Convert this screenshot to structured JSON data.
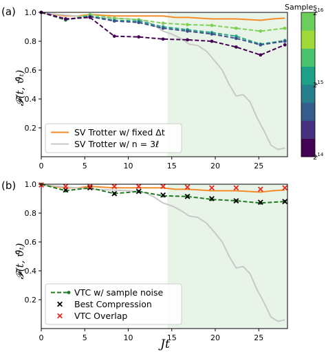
{
  "chart_data": [
    {
      "type": "line",
      "panel_label": "(a)",
      "ylabel": "𝓕(t, ϑ̂ₜ)",
      "xlabel": "",
      "xlim": [
        0,
        28.3
      ],
      "ylim": [
        0.0,
        1.0
      ],
      "xticks": [
        "0",
        "5",
        "10",
        "15",
        "20",
        "25"
      ],
      "xtick_values": [
        0,
        5,
        10,
        15,
        20,
        25
      ],
      "yticks": [
        "0.2",
        "0.4",
        "0.6",
        "0.8",
        "1.0"
      ],
      "ytick_values": [
        0.2,
        0.4,
        0.6,
        0.8,
        1.0
      ],
      "shaded_region": {
        "x": [
          14.5,
          28.3
        ],
        "color": "#e9f4e9"
      },
      "colorbar": {
        "title": "Samples",
        "tick_base": "2",
        "tick_exponents": [
          "16",
          "15",
          "14"
        ],
        "colors": [
          "#440154",
          "#46327e",
          "#365c8d",
          "#277f8e",
          "#1fa187",
          "#4ac16d",
          "#a0da39",
          "#6ccd5a"
        ]
      },
      "series": [
        {
          "name": "SV Trotter w/ fixed Δt",
          "style": "solid",
          "color": "#f28c28",
          "x": [
            0,
            1.4,
            2.8,
            4.2,
            5.6,
            7,
            8.4,
            9.8,
            11.2,
            12.6,
            14,
            15.4,
            16.8,
            18.2,
            19.6,
            21,
            22.4,
            23.8,
            25.2,
            26.6,
            28
          ],
          "y": [
            0.995,
            0.985,
            0.975,
            0.975,
            0.985,
            0.98,
            0.975,
            0.975,
            0.975,
            0.975,
            0.975,
            0.965,
            0.965,
            0.96,
            0.955,
            0.955,
            0.955,
            0.95,
            0.945,
            0.955,
            0.96
          ]
        },
        {
          "name": "SV Trotter w/ n = 3ℓ",
          "style": "solid",
          "color": "#c8c8c8",
          "x": [
            0,
            2,
            4,
            6,
            8,
            10,
            11.2,
            12,
            13,
            14,
            15,
            16,
            17,
            18,
            19,
            20,
            20.8,
            21.6,
            22.4,
            23.2,
            24,
            24.8,
            25.6,
            26.4,
            27.2,
            28
          ],
          "y": [
            0.995,
            0.985,
            0.975,
            0.965,
            0.96,
            0.955,
            0.95,
            0.94,
            0.91,
            0.87,
            0.85,
            0.82,
            0.78,
            0.77,
            0.73,
            0.66,
            0.6,
            0.5,
            0.42,
            0.43,
            0.38,
            0.27,
            0.18,
            0.08,
            0.05,
            0.06
          ]
        },
        {
          "name": "",
          "style": "dashed-markers",
          "color": "#7cd250",
          "x": [
            0,
            2.8,
            5.6,
            8.4,
            11.2,
            14,
            16.8,
            19.6,
            22.4,
            25.2,
            28
          ],
          "y": [
            1.0,
            0.945,
            0.985,
            0.96,
            0.95,
            0.925,
            0.915,
            0.91,
            0.89,
            0.87,
            0.89
          ]
        },
        {
          "name": "",
          "style": "dashed-markers",
          "color": "#26a586",
          "x": [
            0,
            2.8,
            5.6,
            8.4,
            11.2,
            14,
            16.8,
            19.6,
            22.4,
            25.2,
            28
          ],
          "y": [
            1.0,
            0.95,
            0.975,
            0.945,
            0.94,
            0.9,
            0.88,
            0.86,
            0.835,
            0.78,
            0.805
          ]
        },
        {
          "name": "",
          "style": "dashed-markers",
          "color": "#3b528b",
          "x": [
            0,
            2.8,
            5.6,
            8.4,
            11.2,
            14,
            16.8,
            19.6,
            22.4,
            25.2,
            28
          ],
          "y": [
            1.0,
            0.95,
            0.97,
            0.94,
            0.93,
            0.89,
            0.87,
            0.85,
            0.82,
            0.775,
            0.8
          ]
        },
        {
          "name": "",
          "style": "dashed-markers",
          "color": "#440154",
          "x": [
            0,
            2.8,
            5.6,
            8.4,
            11.2,
            14,
            16.8,
            19.6,
            22.4,
            25.2,
            28
          ],
          "y": [
            1.0,
            0.955,
            0.965,
            0.835,
            0.83,
            0.815,
            0.81,
            0.8,
            0.76,
            0.705,
            0.775
          ]
        }
      ],
      "legend": {
        "placement": "lower-left",
        "entries": [
          {
            "label": "SV Trotter w/ fixed Δt",
            "color": "#f28c28",
            "kind": "line"
          },
          {
            "label": "SV Trotter w/ n = 3ℓ",
            "color": "#c8c8c8",
            "kind": "line"
          }
        ]
      }
    },
    {
      "type": "line",
      "panel_label": "(b)",
      "ylabel": "𝓕(t, ϑ̂ₜ)",
      "xlabel": "Jt",
      "xlim": [
        0,
        28.3
      ],
      "ylim": [
        0.0,
        1.0
      ],
      "xticks": [
        "0",
        "5",
        "10",
        "15",
        "20",
        "25"
      ],
      "xtick_values": [
        0,
        5,
        10,
        15,
        20,
        25
      ],
      "yticks": [
        "0.2",
        "0.4",
        "0.6",
        "0.8",
        "1.0"
      ],
      "ytick_values": [
        0.2,
        0.4,
        0.6,
        0.8,
        1.0
      ],
      "shaded_region": {
        "x": [
          14.5,
          28.3
        ],
        "color": "#e9f4e9"
      },
      "series": [
        {
          "name": "",
          "style": "solid",
          "color": "#f28c28",
          "x": [
            0,
            1.4,
            2.8,
            4.2,
            5.6,
            7,
            8.4,
            9.8,
            11.2,
            12.6,
            14,
            15.4,
            16.8,
            18.2,
            19.6,
            21,
            22.4,
            23.8,
            25.2,
            26.6,
            28
          ],
          "y": [
            0.995,
            0.985,
            0.975,
            0.975,
            0.985,
            0.98,
            0.975,
            0.975,
            0.975,
            0.975,
            0.975,
            0.965,
            0.965,
            0.96,
            0.955,
            0.955,
            0.955,
            0.95,
            0.945,
            0.955,
            0.96
          ]
        },
        {
          "name": "",
          "style": "solid",
          "color": "#c8c8c8",
          "x": [
            0,
            2,
            4,
            6,
            8,
            10,
            11.2,
            12,
            13,
            14,
            15,
            16,
            17,
            18,
            19,
            20,
            20.8,
            21.6,
            22.4,
            23.2,
            24,
            24.8,
            25.6,
            26.4,
            27.2,
            28
          ],
          "y": [
            0.995,
            0.985,
            0.975,
            0.965,
            0.96,
            0.955,
            0.95,
            0.94,
            0.91,
            0.87,
            0.85,
            0.82,
            0.78,
            0.77,
            0.73,
            0.66,
            0.6,
            0.5,
            0.42,
            0.43,
            0.38,
            0.27,
            0.18,
            0.08,
            0.05,
            0.06
          ]
        },
        {
          "name": "VTC w/ sample noise",
          "style": "dashed-markers",
          "color": "#1d7a1d",
          "x": [
            0,
            2.8,
            5.6,
            8.4,
            11.2,
            14,
            16.8,
            19.6,
            22.4,
            25.2,
            28
          ],
          "y": [
            1.0,
            0.955,
            0.975,
            0.935,
            0.95,
            0.92,
            0.915,
            0.895,
            0.885,
            0.87,
            0.88
          ]
        },
        {
          "name": "Best Compression",
          "style": "x-markers",
          "color": "#000000",
          "x": [
            2.8,
            5.6,
            8.4,
            11.2,
            14,
            16.8,
            19.6,
            22.4,
            25.2,
            28
          ],
          "y": [
            0.96,
            0.975,
            0.935,
            0.95,
            0.925,
            0.915,
            0.9,
            0.885,
            0.875,
            0.88
          ]
        },
        {
          "name": "VTC Overlap",
          "style": "x-markers",
          "color": "#e8261f",
          "x": [
            0,
            2.8,
            5.6,
            8.4,
            11.2,
            14,
            16.8,
            19.6,
            22.4,
            25.2,
            28
          ],
          "y": [
            0.995,
            0.985,
            0.985,
            0.985,
            0.985,
            0.985,
            0.98,
            0.975,
            0.975,
            0.965,
            0.975
          ]
        }
      ],
      "legend": {
        "placement": "lower-left",
        "entries": [
          {
            "label": "VTC w/ sample noise",
            "color": "#1d7a1d",
            "kind": "dashed-marker"
          },
          {
            "label": "Best Compression",
            "color": "#000000",
            "kind": "x"
          },
          {
            "label": "VTC Overlap",
            "color": "#e8261f",
            "kind": "x"
          }
        ]
      }
    }
  ]
}
